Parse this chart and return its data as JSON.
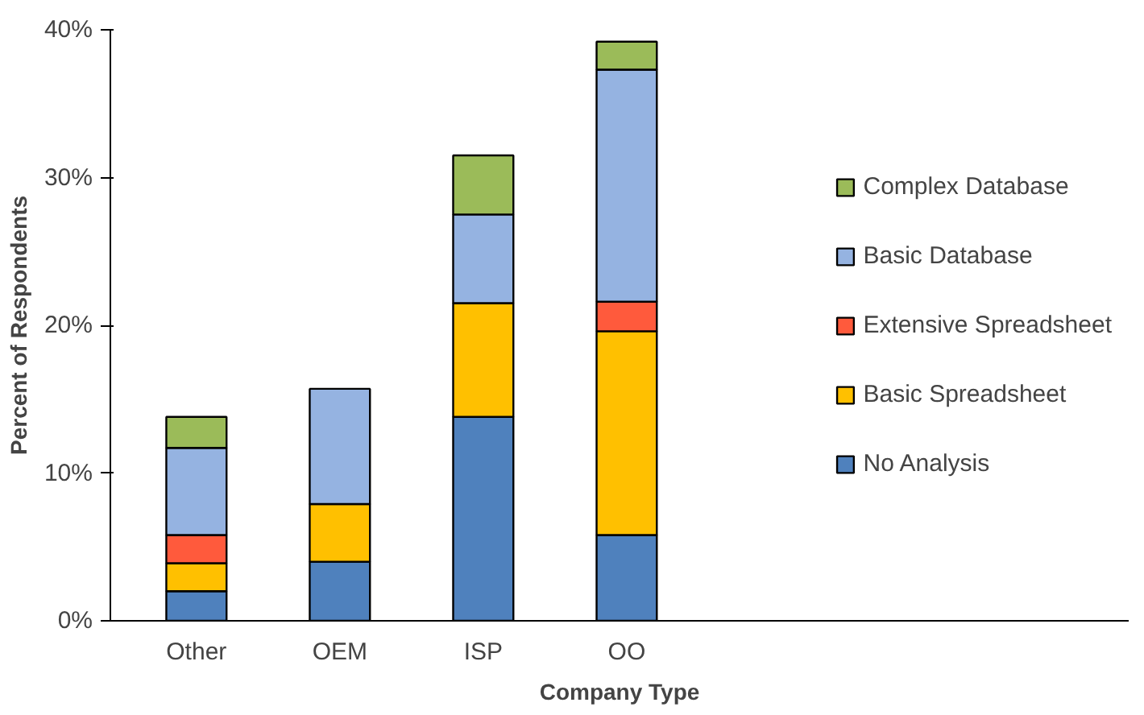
{
  "chart_data": {
    "type": "bar",
    "stacked": true,
    "xlabel": "Company Type",
    "ylabel": "Percent of Respondents",
    "categories": [
      "Other",
      "OEM",
      "ISP",
      "OO"
    ],
    "series": [
      {
        "name": "No Analysis",
        "color": "#4f81bd",
        "values": [
          2,
          4,
          13.8,
          5.8
        ]
      },
      {
        "name": "Basic Spreadsheet",
        "color": "#ffc000",
        "values": [
          1.9,
          3.9,
          7.7,
          13.8
        ]
      },
      {
        "name": "Extensive Spreadsheet",
        "color": "#ff5a3c",
        "values": [
          1.9,
          null,
          null,
          2
        ]
      },
      {
        "name": "Basic Database",
        "color": "#95b3e1",
        "values": [
          5.9,
          7.8,
          6,
          15.7
        ]
      },
      {
        "name": "Complex Database",
        "color": "#9bbb59",
        "values": [
          2.1,
          null,
          4,
          1.9
        ]
      }
    ],
    "ylim": [
      0,
      40
    ],
    "yticks": [
      {
        "value": 0,
        "label": "0%"
      },
      {
        "value": 10,
        "label": "10%"
      },
      {
        "value": 20,
        "label": "20%"
      },
      {
        "value": 30,
        "label": "30%"
      },
      {
        "value": 40,
        "label": "40%"
      }
    ],
    "legend": "right",
    "grid": false
  }
}
